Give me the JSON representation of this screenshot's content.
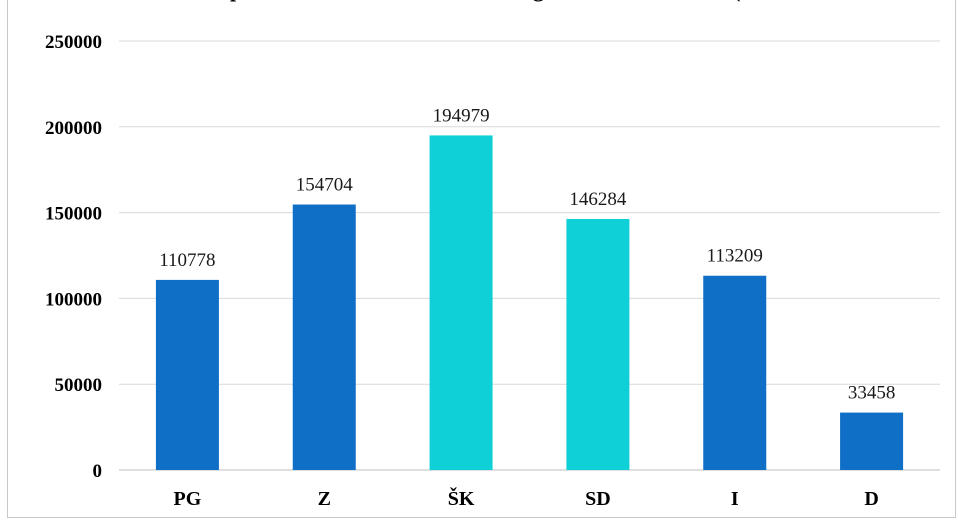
{
  "chart_data": {
    "type": "bar",
    "title": "pā… … ··· ·· … ·· …· g… ·· … ·· … (… …),",
    "title_visible_fragments": [
      "p",
      "g",
      "("
    ],
    "categories": [
      "PG",
      "Z",
      "ŠK",
      "SD",
      "I",
      "D"
    ],
    "values": [
      110778,
      154704,
      194979,
      146284,
      113209,
      33458
    ],
    "data_labels": [
      "110778",
      "154704",
      "194979",
      "146284",
      "113209",
      "33458"
    ],
    "colors": [
      "#0f6fc6",
      "#0f6fc6",
      "#0fcfd7",
      "#0fcfd7",
      "#0f6fc6",
      "#0f6fc6"
    ],
    "ylim": [
      0,
      250000
    ],
    "yticks": [
      "0",
      "50000",
      "100000",
      "150000",
      "200000",
      "250000"
    ],
    "ytick_values": [
      0,
      50000,
      100000,
      150000,
      200000,
      250000
    ],
    "xlabel": "",
    "ylabel": "",
    "grid": true,
    "legend": "none"
  }
}
